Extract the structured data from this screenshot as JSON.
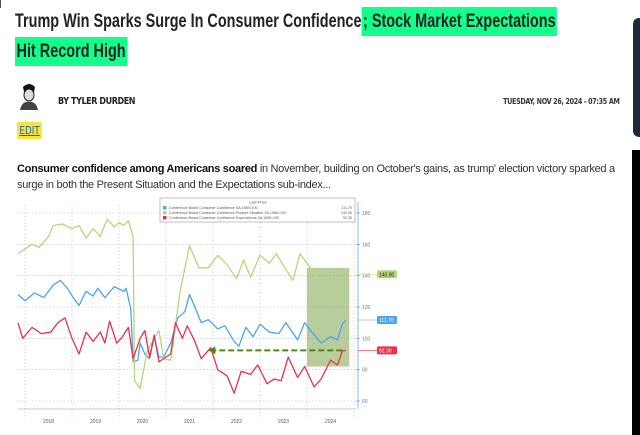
{
  "article": {
    "title_plain": "Trump Win Sparks Surge In Consumer Confidence",
    "title_highlight_1": "; Stock Market Expectations",
    "title_highlight_2": "Hit Record High",
    "byline": "BY TYLER DURDEN",
    "date": "TUESDAY, NOV 26, 2024 - 07:35 AM",
    "edit_label": "EDIT",
    "lead_bold": "Consumer confidence among Americans soared",
    "lead_rest": " in November, building on October's gains, as trump' election victory sparked a surge in both the Present Situation and the Expectations sub-index..."
  },
  "chart_data": {
    "type": "line",
    "legend_title": "Last Price",
    "legend_position": "top-right",
    "y_ticks": [
      60,
      80,
      100,
      120,
      140,
      160,
      180
    ],
    "ylim": [
      55,
      185
    ],
    "x_ticks": [
      "2018",
      "2019",
      "2020",
      "2021",
      "2022",
      "2023",
      "2024"
    ],
    "series": [
      {
        "name": "Conference Board Consumer Confidence SA 1985=100",
        "last": "111.70",
        "color": "#4da3ef",
        "points": [
          [
            2017.85,
            128
          ],
          [
            2018.0,
            124
          ],
          [
            2018.2,
            129
          ],
          [
            2018.4,
            126
          ],
          [
            2018.6,
            134
          ],
          [
            2018.75,
            137
          ],
          [
            2018.9,
            132
          ],
          [
            2019.05,
            125
          ],
          [
            2019.15,
            121
          ],
          [
            2019.3,
            130
          ],
          [
            2019.45,
            127
          ],
          [
            2019.55,
            132
          ],
          [
            2019.7,
            126
          ],
          [
            2019.9,
            133
          ],
          [
            2020.1,
            130
          ],
          [
            2020.15,
            132
          ],
          [
            2020.25,
            119
          ],
          [
            2020.3,
            85
          ],
          [
            2020.4,
            86
          ],
          [
            2020.45,
            97
          ],
          [
            2020.55,
            90
          ],
          [
            2020.65,
            87
          ],
          [
            2020.75,
            101
          ],
          [
            2020.85,
            88
          ],
          [
            2020.95,
            88
          ],
          [
            2021.1,
            97
          ],
          [
            2021.25,
            113
          ],
          [
            2021.4,
            117
          ],
          [
            2021.5,
            128
          ],
          [
            2021.6,
            121
          ],
          [
            2021.75,
            110
          ],
          [
            2021.9,
            112
          ],
          [
            2022.1,
            106
          ],
          [
            2022.25,
            108
          ],
          [
            2022.45,
            98
          ],
          [
            2022.55,
            95
          ],
          [
            2022.7,
            107
          ],
          [
            2022.85,
            101
          ],
          [
            2023.0,
            109
          ],
          [
            2023.2,
            104
          ],
          [
            2023.4,
            103
          ],
          [
            2023.55,
            110
          ],
          [
            2023.8,
            99
          ],
          [
            2023.95,
            110
          ],
          [
            2024.1,
            104
          ],
          [
            2024.3,
            97
          ],
          [
            2024.5,
            101
          ],
          [
            2024.65,
            99
          ],
          [
            2024.75,
            109
          ],
          [
            2024.83,
            111.7
          ]
        ]
      },
      {
        "name": "Conference Board Consumer Confidence Present Situation SA 1985=100",
        "last": "140.90",
        "color": "#b5d77a",
        "points": [
          [
            2017.85,
            154
          ],
          [
            2018.0,
            157
          ],
          [
            2018.15,
            160
          ],
          [
            2018.3,
            158
          ],
          [
            2018.5,
            165
          ],
          [
            2018.6,
            172
          ],
          [
            2018.8,
            173
          ],
          [
            2019.0,
            170
          ],
          [
            2019.15,
            172
          ],
          [
            2019.3,
            164
          ],
          [
            2019.45,
            170
          ],
          [
            2019.6,
            165
          ],
          [
            2019.75,
            176
          ],
          [
            2019.9,
            171
          ],
          [
            2020.0,
            174
          ],
          [
            2020.1,
            172
          ],
          [
            2020.2,
            175
          ],
          [
            2020.3,
            165
          ],
          [
            2020.33,
            73
          ],
          [
            2020.45,
            68
          ],
          [
            2020.6,
            92
          ],
          [
            2020.75,
            100
          ],
          [
            2020.85,
            105
          ],
          [
            2020.95,
            87
          ],
          [
            2021.1,
            86
          ],
          [
            2021.3,
            130
          ],
          [
            2021.5,
            159
          ],
          [
            2021.7,
            145
          ],
          [
            2021.9,
            145
          ],
          [
            2022.1,
            153
          ],
          [
            2022.3,
            147
          ],
          [
            2022.5,
            138
          ],
          [
            2022.65,
            150
          ],
          [
            2022.8,
            139
          ],
          [
            2023.0,
            153
          ],
          [
            2023.2,
            148
          ],
          [
            2023.35,
            154
          ],
          [
            2023.55,
            144
          ],
          [
            2023.7,
            137
          ],
          [
            2023.85,
            154
          ],
          [
            2024.0,
            148
          ],
          [
            2024.2,
            140
          ],
          [
            2024.4,
            134
          ],
          [
            2024.55,
            131
          ],
          [
            2024.65,
            125
          ],
          [
            2024.75,
            135
          ],
          [
            2024.83,
            140.9
          ]
        ]
      },
      {
        "name": "Conference Board Consumer Confidence Expectations SA 1985=100",
        "last": "92.30",
        "color": "#e8334a",
        "points": [
          [
            2017.85,
            110
          ],
          [
            2017.95,
            100
          ],
          [
            2018.15,
            107
          ],
          [
            2018.35,
            103
          ],
          [
            2018.55,
            104
          ],
          [
            2018.7,
            110
          ],
          [
            2018.85,
            113
          ],
          [
            2019.0,
            100
          ],
          [
            2019.15,
            90
          ],
          [
            2019.3,
            104
          ],
          [
            2019.45,
            98
          ],
          [
            2019.6,
            104
          ],
          [
            2019.7,
            97
          ],
          [
            2019.8,
            111
          ],
          [
            2019.95,
            97
          ],
          [
            2020.05,
            100
          ],
          [
            2020.2,
            107
          ],
          [
            2020.3,
            87
          ],
          [
            2020.45,
            100
          ],
          [
            2020.55,
            105
          ],
          [
            2020.65,
            88
          ],
          [
            2020.75,
            102
          ],
          [
            2020.85,
            85
          ],
          [
            2021.0,
            88
          ],
          [
            2021.1,
            90
          ],
          [
            2021.2,
            110
          ],
          [
            2021.35,
            100
          ],
          [
            2021.45,
            108
          ],
          [
            2021.6,
            99
          ],
          [
            2021.75,
            87
          ],
          [
            2021.95,
            94
          ],
          [
            2022.1,
            80
          ],
          [
            2022.3,
            76
          ],
          [
            2022.45,
            65
          ],
          [
            2022.6,
            79
          ],
          [
            2022.8,
            77
          ],
          [
            2022.95,
            83
          ],
          [
            2023.15,
            71
          ],
          [
            2023.3,
            74
          ],
          [
            2023.45,
            73
          ],
          [
            2023.6,
            88
          ],
          [
            2023.8,
            75
          ],
          [
            2023.95,
            82
          ],
          [
            2024.15,
            69
          ],
          [
            2024.3,
            74
          ],
          [
            2024.5,
            86
          ],
          [
            2024.65,
            83
          ],
          [
            2024.75,
            92
          ],
          [
            2024.83,
            92.3
          ]
        ]
      }
    ],
    "annotations": {
      "highlight_range": {
        "x": [
          2024.0,
          2024.9
        ],
        "y": [
          82,
          145
        ]
      },
      "arrow": {
        "from": [
          2024.75,
          92.3
        ],
        "to": [
          2021.9,
          92.3
        ]
      }
    }
  }
}
